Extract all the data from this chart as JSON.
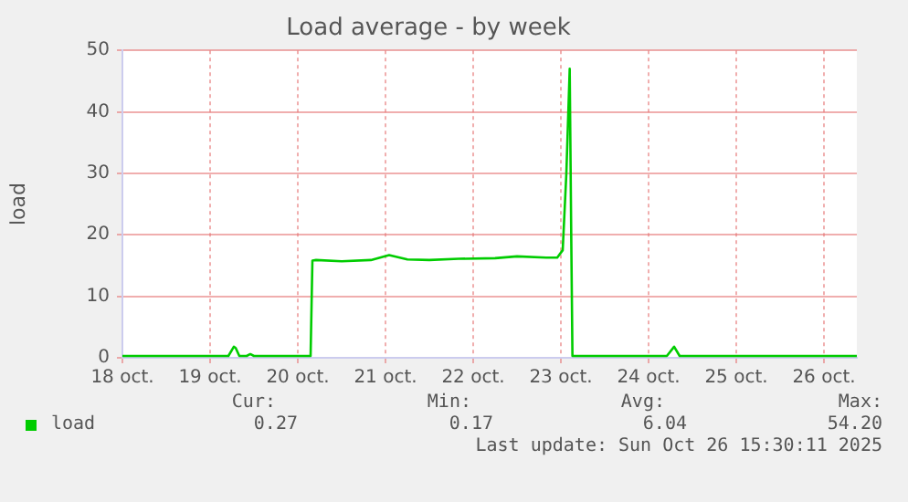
{
  "chart_data": {
    "type": "line",
    "title": "Load average - by week",
    "ylabel": "load",
    "x": [
      "2025-10-18T00:00",
      "2025-10-19T05:00",
      "2025-10-19T06:30",
      "2025-10-19T07:00",
      "2025-10-19T08:00",
      "2025-10-19T10:00",
      "2025-10-19T11:00",
      "2025-10-19T12:00",
      "2025-10-20T03:30",
      "2025-10-20T04:00",
      "2025-10-20T05:00",
      "2025-10-20T12:00",
      "2025-10-20T20:00",
      "2025-10-21T01:00",
      "2025-10-21T06:00",
      "2025-10-21T12:00",
      "2025-10-21T20:00",
      "2025-10-22T06:00",
      "2025-10-22T12:00",
      "2025-10-22T20:00",
      "2025-10-22T23:00",
      "2025-10-23T00:30",
      "2025-10-23T01:30",
      "2025-10-23T02:25",
      "2025-10-23T02:50",
      "2025-10-23T03:10",
      "2025-10-24T05:00",
      "2025-10-24T07:00",
      "2025-10-24T08:30",
      "2025-10-26T09:00"
    ],
    "series": [
      {
        "name": "load",
        "color": "#00cc00",
        "values": [
          0.3,
          0.3,
          1.8,
          1.6,
          0.3,
          0.3,
          0.6,
          0.3,
          0.3,
          15.8,
          15.9,
          15.7,
          15.9,
          16.7,
          16.0,
          15.9,
          16.1,
          16.2,
          16.5,
          16.3,
          16.3,
          17.5,
          30,
          47,
          20,
          0.3,
          0.3,
          1.8,
          0.3,
          0.3
        ]
      }
    ],
    "xlim": [
      "2025-10-18T00:00",
      "2025-10-26T09:00"
    ],
    "xticks": [
      {
        "value": "2025-10-18",
        "label": "18 oct."
      },
      {
        "value": "2025-10-19",
        "label": "19 oct."
      },
      {
        "value": "2025-10-20",
        "label": "20 oct."
      },
      {
        "value": "2025-10-21",
        "label": "21 oct."
      },
      {
        "value": "2025-10-22",
        "label": "22 oct."
      },
      {
        "value": "2025-10-23",
        "label": "23 oct."
      },
      {
        "value": "2025-10-24",
        "label": "24 oct."
      },
      {
        "value": "2025-10-25",
        "label": "25 oct."
      },
      {
        "value": "2025-10-26",
        "label": "26 oct."
      }
    ],
    "ylim": [
      0,
      50
    ],
    "yticks": [
      0,
      10,
      20,
      30,
      40,
      50
    ],
    "grid": true,
    "legend": "bottom left",
    "marker": "none",
    "line_style": "solid",
    "annotations": [
      "Cur:",
      "Min:",
      "Avg:",
      "Max:",
      "0.27",
      "0.17",
      "6.04",
      "54.20",
      "Last update: Sun Oct 26 15:30:11 2025"
    ]
  }
}
